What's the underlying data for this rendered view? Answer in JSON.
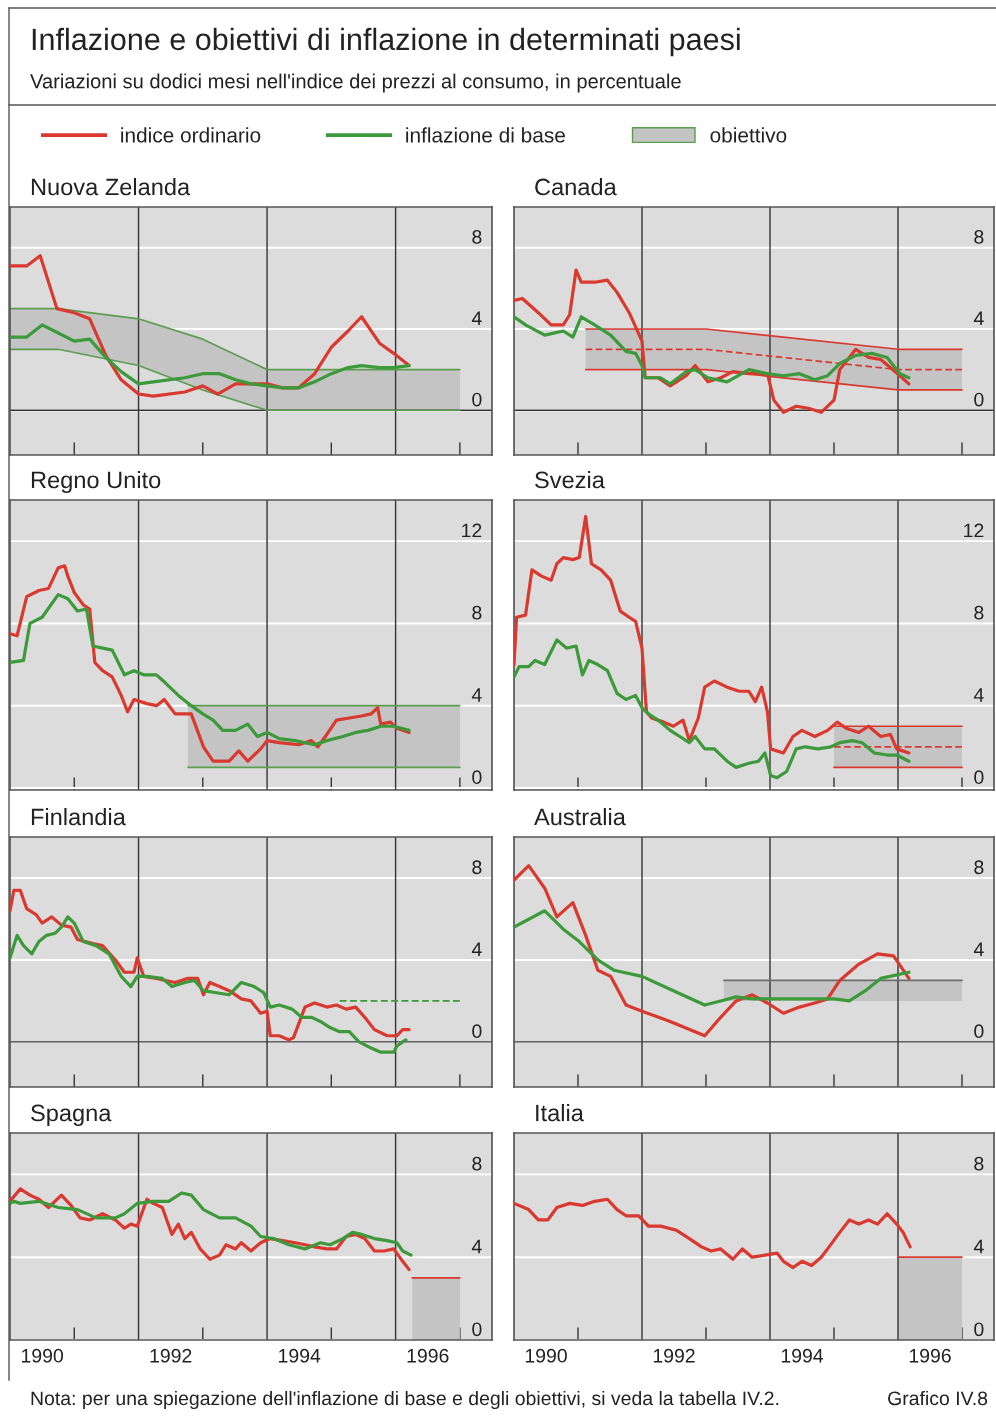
{
  "chart_data": [
    {
      "type": "other",
      "title": "Inflazione e obiettivi di inflazione in determinati paesi",
      "subtitle": "Variazioni su dodici mesi nell'indice dei prezzi al consumo, in percentuale",
      "annotations": [
        "Nota: per una spiegazione dell'inflazione di base e degli obiettivi, si veda la tabella IV.2.",
        "Grafico IV.8"
      ]
    },
    {
      "type": "line",
      "title": "Nuova Zelanda",
      "xlim": [
        1990,
        1997.5
      ],
      "ylim": [
        -2.2,
        10
      ],
      "yticks": [
        0,
        4,
        8
      ],
      "grid": "y",
      "tick_labels": "y",
      "legend": "top",
      "xticks": [
        {
          "value": 1991,
          "label": null
        },
        {
          "value": 1993,
          "label": null
        },
        {
          "value": 1995,
          "label": null
        },
        {
          "value": 1997,
          "label": null
        }
      ],
      "ref_lines": [
        {
          "axis": "x",
          "value": 1992
        },
        {
          "axis": "x",
          "value": 1994
        },
        {
          "axis": "x",
          "value": 1996
        },
        {
          "axis": "y",
          "value": 0
        }
      ],
      "series": [
        {
          "name": "indice ordinario",
          "color": "#d9392f",
          "x": [
            1990.0,
            1990.26,
            1990.47,
            1990.73,
            1991.0,
            1991.24,
            1991.49,
            1991.73,
            1992.0,
            1992.23,
            1992.72,
            1993.0,
            1993.23,
            1993.51,
            1993.75,
            1994.0,
            1994.24,
            1994.49,
            1994.74,
            1995.0,
            1995.26,
            1995.47,
            1995.75,
            1995.97,
            1996.21
          ],
          "values": [
            7.1,
            7.1,
            7.6,
            5.0,
            4.8,
            4.5,
            2.7,
            1.5,
            0.8,
            0.7,
            0.9,
            1.2,
            0.8,
            1.3,
            1.3,
            1.3,
            1.1,
            1.1,
            1.8,
            3.1,
            3.9,
            4.6,
            3.3,
            2.8,
            2.2
          ]
        },
        {
          "name": "inflazione di base",
          "color": "#3c9a3a",
          "x": [
            1990.0,
            1990.26,
            1990.5,
            1990.75,
            1991.0,
            1991.24,
            1991.49,
            1991.73,
            1992.0,
            1992.23,
            1992.72,
            1993.0,
            1993.26,
            1993.51,
            1993.75,
            1994.0,
            1994.24,
            1994.49,
            1994.74,
            1995.0,
            1995.26,
            1995.47,
            1995.75,
            1995.97,
            1996.21
          ],
          "values": [
            3.6,
            3.6,
            4.2,
            3.8,
            3.4,
            3.5,
            2.6,
            1.9,
            1.3,
            1.4,
            1.6,
            1.8,
            1.8,
            1.5,
            1.3,
            1.2,
            1.1,
            1.1,
            1.4,
            1.8,
            2.1,
            2.2,
            2.1,
            2.1,
            2.2
          ]
        },
        {
          "color": "#5a9e4e",
          "x": [
            1990,
            1990.75,
            1992,
            1993,
            1994,
            1997
          ],
          "values": [
            3,
            3,
            2.2,
            1,
            0,
            0
          ]
        },
        {
          "name": "obiettivo",
          "color": "#5a9e4e",
          "x": [
            1990,
            1990.75,
            1992,
            1993,
            1994,
            1997
          ],
          "values": [
            5,
            5,
            4.5,
            3.5,
            2,
            2
          ],
          "lower": [
            3,
            3,
            2.2,
            1,
            0,
            0
          ],
          "upper": [
            5,
            5,
            4.5,
            3.5,
            2,
            2
          ]
        }
      ]
    },
    {
      "type": "line",
      "title": "Canada",
      "xlim": [
        1990,
        1997.5
      ],
      "ylim": [
        -2.2,
        10
      ],
      "yticks": [
        0,
        4,
        8
      ],
      "grid": "y",
      "tick_labels": "y",
      "xticks": [
        {
          "value": 1991,
          "label": null
        },
        {
          "value": 1993,
          "label": null
        },
        {
          "value": 1995,
          "label": null
        },
        {
          "value": 1997,
          "label": null
        }
      ],
      "ref_lines": [
        {
          "axis": "x",
          "value": 1992
        },
        {
          "axis": "x",
          "value": 1994
        },
        {
          "axis": "x",
          "value": 1996
        },
        {
          "axis": "y",
          "value": 0
        }
      ],
      "series": [
        {
          "color": "#d9392f",
          "line_style": "dashed",
          "x": [
            1991.12,
            1993,
            1996,
            1997
          ],
          "values": [
            3,
            3,
            2,
            2
          ],
          "lower": [
            2,
            2,
            1,
            1
          ],
          "upper": [
            4,
            4,
            3,
            3
          ]
        },
        {
          "color": "#d9392f",
          "x": [
            1991.12,
            1993,
            1996,
            1997
          ],
          "values": [
            4,
            4,
            3,
            3
          ]
        },
        {
          "color": "#d9392f",
          "x": [
            1991.12,
            1993,
            1996,
            1997
          ],
          "values": [
            2,
            2,
            1,
            1
          ]
        },
        {
          "color": "#d9392f",
          "x": [
            1990.0,
            1990.13,
            1990.38,
            1990.58,
            1990.77,
            1990.87,
            1990.97,
            1991.05,
            1991.26,
            1991.46,
            1991.61,
            1991.8,
            1992.0,
            1992.05,
            1992.25,
            1992.44,
            1992.69,
            1992.83,
            1993.03,
            1993.23,
            1993.42,
            1993.67,
            1993.96,
            1994.06,
            1994.21,
            1994.41,
            1994.6,
            1994.8,
            1995.0,
            1995.09,
            1995.34,
            1995.54,
            1995.73,
            1995.88,
            1996.03,
            1996.17
          ],
          "values": [
            5.4,
            5.5,
            4.8,
            4.2,
            4.2,
            4.7,
            6.9,
            6.3,
            6.3,
            6.4,
            5.8,
            4.8,
            3.4,
            1.6,
            1.6,
            1.2,
            1.7,
            2.2,
            1.4,
            1.6,
            1.9,
            1.8,
            1.8,
            0.5,
            -0.1,
            0.2,
            0.1,
            -0.1,
            0.5,
            2.0,
            3.0,
            2.6,
            2.5,
            2.1,
            1.7,
            1.3
          ]
        },
        {
          "color": "#3c9a3a",
          "x": [
            1990.0,
            1990.18,
            1990.48,
            1990.77,
            1990.92,
            1991.05,
            1991.26,
            1991.51,
            1991.75,
            1991.9,
            1992.0,
            1992.05,
            1992.29,
            1992.44,
            1992.69,
            1992.83,
            1993.03,
            1993.33,
            1993.67,
            1993.96,
            1994.21,
            1994.46,
            1994.7,
            1994.9,
            1995.09,
            1995.34,
            1995.59,
            1995.83,
            1996.03,
            1996.17
          ],
          "values": [
            4.6,
            4.2,
            3.7,
            3.9,
            3.6,
            4.6,
            4.2,
            3.7,
            2.9,
            2.8,
            2.2,
            1.6,
            1.6,
            1.3,
            1.9,
            2.0,
            1.6,
            1.4,
            2.0,
            1.8,
            1.7,
            1.8,
            1.5,
            1.7,
            2.3,
            2.7,
            2.8,
            2.6,
            1.8,
            1.6
          ]
        }
      ]
    },
    {
      "type": "line",
      "title": "Regno Unito",
      "xlim": [
        1990,
        1997.5
      ],
      "ylim": [
        -0.1,
        14
      ],
      "yticks": [
        0,
        4,
        8,
        12
      ],
      "grid": "y",
      "tick_labels": "y",
      "xticks": [
        {
          "value": 1991,
          "label": null
        },
        {
          "value": 1993,
          "label": null
        },
        {
          "value": 1995,
          "label": null
        },
        {
          "value": 1997,
          "label": null
        }
      ],
      "ref_lines": [
        {
          "axis": "x",
          "value": 1992
        },
        {
          "axis": "x",
          "value": 1994
        },
        {
          "axis": "x",
          "value": 1996
        }
      ],
      "series": [
        {
          "color": "#5a9e4e",
          "x": [
            1992.77,
            1997
          ],
          "values": [
            4,
            4
          ],
          "lower": [
            1,
            1
          ],
          "upper": [
            4,
            4
          ]
        },
        {
          "color": "#5a9e4e",
          "x": [
            1992.77,
            1997
          ],
          "values": [
            1,
            1
          ]
        },
        {
          "color": "#d9392f",
          "x": [
            1990.0,
            1990.11,
            1990.26,
            1990.45,
            1990.6,
            1990.75,
            1990.85,
            1990.9,
            1991.0,
            1991.14,
            1991.24,
            1991.32,
            1991.44,
            1991.59,
            1991.73,
            1991.83,
            1991.93,
            1992.13,
            1992.28,
            1992.4,
            1992.57,
            1992.82,
            1993.01,
            1993.16,
            1993.41,
            1993.56,
            1993.7,
            1993.9,
            1994.0,
            1994.19,
            1994.49,
            1994.69,
            1994.79,
            1994.93,
            1995.08,
            1995.28,
            1995.47,
            1995.62,
            1995.72,
            1995.77,
            1995.92,
            1996.02,
            1996.21
          ],
          "values": [
            7.5,
            7.4,
            9.3,
            9.6,
            9.7,
            10.7,
            10.8,
            10.3,
            9.5,
            8.9,
            8.7,
            6.1,
            5.7,
            5.4,
            4.5,
            3.7,
            4.3,
            4.1,
            4.0,
            4.3,
            3.6,
            3.6,
            2.0,
            1.3,
            1.3,
            1.8,
            1.3,
            1.9,
            2.3,
            2.2,
            2.1,
            2.3,
            2.0,
            2.6,
            3.3,
            3.4,
            3.5,
            3.6,
            3.9,
            3.1,
            3.2,
            2.9,
            2.7
          ]
        },
        {
          "color": "#3c9a3a",
          "x": [
            1990.0,
            1990.21,
            1990.31,
            1990.5,
            1990.75,
            1990.9,
            1991.05,
            1991.19,
            1991.29,
            1991.44,
            1991.59,
            1991.78,
            1991.93,
            1992.08,
            1992.28,
            1992.42,
            1992.62,
            1992.82,
            1993.0,
            1993.16,
            1993.31,
            1993.51,
            1993.7,
            1993.85,
            1994.0,
            1994.19,
            1994.44,
            1994.74,
            1994.93,
            1995.18,
            1995.38,
            1995.57,
            1995.77,
            1995.97,
            1996.21
          ],
          "values": [
            6.1,
            6.2,
            8.0,
            8.3,
            9.4,
            9.2,
            8.6,
            8.7,
            6.9,
            6.8,
            6.7,
            5.5,
            5.7,
            5.5,
            5.5,
            5.1,
            4.5,
            4.0,
            3.6,
            3.3,
            2.8,
            2.8,
            3.1,
            2.5,
            2.7,
            2.4,
            2.3,
            2.1,
            2.3,
            2.5,
            2.7,
            2.8,
            3.0,
            3.0,
            2.8
          ]
        }
      ]
    },
    {
      "type": "line",
      "title": "Svezia",
      "xlim": [
        1990,
        1997.5
      ],
      "ylim": [
        -0.1,
        14
      ],
      "yticks": [
        0,
        4,
        8,
        12
      ],
      "grid": "y",
      "tick_labels": "y",
      "xticks": [
        {
          "value": 1991,
          "label": null
        },
        {
          "value": 1993,
          "label": null
        },
        {
          "value": 1995,
          "label": null
        },
        {
          "value": 1997,
          "label": null
        }
      ],
      "ref_lines": [
        {
          "axis": "x",
          "value": 1992
        },
        {
          "axis": "x",
          "value": 1994
        },
        {
          "axis": "x",
          "value": 1996
        }
      ],
      "series": [
        {
          "color": "#d9392f",
          "line_style": "dashed",
          "x": [
            1995,
            1997
          ],
          "values": [
            2,
            2
          ],
          "lower": [
            1,
            1
          ],
          "upper": [
            3,
            3
          ]
        },
        {
          "color": "#d9392f",
          "x": [
            1995,
            1997
          ],
          "values": [
            3,
            3
          ]
        },
        {
          "color": "#d9392f",
          "x": [
            1995,
            1997
          ],
          "values": [
            1,
            1
          ]
        },
        {
          "color": "#d9392f",
          "x": [
            1990.0,
            1990.04,
            1990.18,
            1990.28,
            1990.43,
            1990.58,
            1990.67,
            1990.77,
            1990.92,
            1991.02,
            1991.12,
            1991.21,
            1991.36,
            1991.51,
            1991.66,
            1991.8,
            1991.9,
            1992.0,
            1992.07,
            1992.15,
            1992.34,
            1992.49,
            1992.64,
            1992.74,
            1992.88,
            1992.98,
            1993.13,
            1993.33,
            1993.52,
            1993.67,
            1993.77,
            1993.87,
            1993.96,
            1994.01,
            1994.21,
            1994.36,
            1994.5,
            1994.7,
            1994.9,
            1995.05,
            1995.19,
            1995.39,
            1995.54,
            1995.73,
            1995.88,
            1995.98,
            1996.17
          ],
          "values": [
            6.0,
            8.3,
            8.4,
            10.6,
            10.3,
            10.1,
            10.9,
            11.2,
            11.1,
            11.2,
            13.2,
            10.9,
            10.6,
            10.1,
            8.6,
            8.3,
            8.1,
            6.8,
            3.7,
            3.4,
            3.2,
            3.0,
            3.3,
            2.3,
            3.4,
            4.9,
            5.2,
            4.9,
            4.7,
            4.7,
            4.2,
            4.9,
            3.7,
            1.9,
            1.7,
            2.5,
            2.8,
            2.5,
            2.8,
            3.2,
            2.9,
            2.7,
            3.0,
            2.5,
            2.6,
            1.9,
            1.7
          ]
        },
        {
          "color": "#3c9a3a",
          "x": [
            1990.0,
            1990.08,
            1990.23,
            1990.33,
            1990.48,
            1990.67,
            1990.82,
            1990.97,
            1991.07,
            1991.17,
            1991.31,
            1991.46,
            1991.61,
            1991.75,
            1991.9,
            1992.0,
            1992.1,
            1992.25,
            1992.44,
            1992.59,
            1992.74,
            1992.83,
            1992.98,
            1993.13,
            1993.33,
            1993.47,
            1993.67,
            1993.82,
            1993.92,
            1994.01,
            1994.11,
            1994.26,
            1994.41,
            1994.55,
            1994.75,
            1994.95,
            1995.09,
            1995.29,
            1995.44,
            1995.63,
            1995.83,
            1995.98,
            1996.17
          ],
          "values": [
            5.4,
            5.9,
            5.9,
            6.2,
            6.0,
            7.2,
            6.8,
            6.9,
            5.5,
            6.2,
            6.0,
            5.7,
            4.6,
            4.3,
            4.5,
            3.9,
            3.6,
            3.3,
            2.8,
            2.5,
            2.2,
            2.5,
            1.9,
            1.9,
            1.3,
            1.0,
            1.2,
            1.3,
            1.7,
            0.6,
            0.5,
            0.8,
            1.9,
            2.0,
            1.9,
            2.0,
            2.2,
            2.3,
            2.2,
            1.7,
            1.6,
            1.6,
            1.3
          ]
        }
      ]
    },
    {
      "type": "line",
      "title": "Finlandia",
      "xlim": [
        1990,
        1997.5
      ],
      "ylim": [
        -2.2,
        10
      ],
      "yticks": [
        0,
        4,
        8
      ],
      "grid": "y",
      "tick_labels": "y",
      "xticks": [
        {
          "value": 1991,
          "label": null
        },
        {
          "value": 1993,
          "label": null
        },
        {
          "value": 1995,
          "label": null
        },
        {
          "value": 1997,
          "label": null
        }
      ],
      "ref_lines": [
        {
          "axis": "x",
          "value": 1992
        },
        {
          "axis": "x",
          "value": 1994
        },
        {
          "axis": "x",
          "value": 1996
        },
        {
          "axis": "y",
          "value": 0
        }
      ],
      "series": [
        {
          "color": "#3c9a3a",
          "line_style": "dashed",
          "x": [
            1995.13,
            1997
          ],
          "values": [
            2,
            2
          ]
        },
        {
          "color": "#d9392f",
          "x": [
            1990.0,
            1990.06,
            1990.16,
            1990.26,
            1990.41,
            1990.5,
            1990.65,
            1990.8,
            1990.95,
            1991.05,
            1991.29,
            1991.44,
            1991.64,
            1991.78,
            1991.93,
            1991.98,
            1992.08,
            1992.28,
            1992.42,
            1992.57,
            1992.77,
            1992.92,
            1993.01,
            1993.11,
            1993.26,
            1993.41,
            1993.6,
            1993.75,
            1993.9,
            1994.0,
            1994.05,
            1994.19,
            1994.34,
            1994.41,
            1994.59,
            1994.74,
            1994.93,
            1995.08,
            1995.23,
            1995.38,
            1995.52,
            1995.67,
            1995.87,
            1996.02,
            1996.11,
            1996.21
          ],
          "values": [
            6.4,
            7.4,
            7.4,
            6.5,
            6.2,
            5.8,
            6.1,
            5.7,
            5.6,
            5.0,
            4.8,
            4.7,
            4.0,
            3.4,
            3.4,
            4.1,
            3.2,
            3.1,
            3.0,
            2.9,
            3.1,
            3.1,
            2.3,
            2.9,
            2.7,
            2.5,
            2.1,
            2.0,
            1.4,
            1.5,
            0.3,
            0.3,
            0.1,
            0.2,
            1.7,
            1.9,
            1.7,
            1.8,
            1.6,
            1.7,
            1.2,
            0.6,
            0.3,
            0.3,
            0.6,
            0.6
          ]
        },
        {
          "color": "#3c9a3a",
          "x": [
            1990.0,
            1990.11,
            1990.21,
            1990.34,
            1990.45,
            1990.57,
            1990.7,
            1990.8,
            1990.9,
            1991.0,
            1991.14,
            1991.34,
            1991.54,
            1991.73,
            1991.88,
            1991.98,
            1992.13,
            1992.37,
            1992.52,
            1992.72,
            1992.87,
            1993.01,
            1993.21,
            1993.41,
            1993.6,
            1993.8,
            1993.95,
            1994.05,
            1994.19,
            1994.39,
            1994.54,
            1994.69,
            1994.83,
            1994.98,
            1995.13,
            1995.28,
            1995.43,
            1995.62,
            1995.77,
            1995.97,
            1996.02,
            1996.11,
            1996.16
          ],
          "values": [
            4.1,
            5.2,
            4.7,
            4.3,
            4.9,
            5.2,
            5.3,
            5.6,
            6.1,
            5.8,
            4.9,
            4.7,
            4.3,
            3.2,
            2.7,
            3.2,
            3.2,
            3.1,
            2.7,
            2.9,
            3.0,
            2.5,
            2.4,
            2.3,
            2.9,
            2.7,
            2.4,
            1.7,
            1.8,
            1.6,
            1.2,
            1.2,
            1.0,
            0.7,
            0.5,
            0.5,
            0.0,
            -0.3,
            -0.5,
            -0.5,
            -0.2,
            0.0,
            0.1
          ]
        }
      ]
    },
    {
      "type": "line",
      "title": "Australia",
      "xlim": [
        1990,
        1997.5
      ],
      "ylim": [
        -2.2,
        10
      ],
      "yticks": [
        0,
        4,
        8
      ],
      "grid": "y",
      "tick_labels": "y",
      "xticks": [
        {
          "value": 1991,
          "label": null
        },
        {
          "value": 1993,
          "label": null
        },
        {
          "value": 1995,
          "label": null
        },
        {
          "value": 1997,
          "label": null
        }
      ],
      "ref_lines": [
        {
          "axis": "x",
          "value": 1992
        },
        {
          "axis": "x",
          "value": 1994
        },
        {
          "axis": "x",
          "value": 1996
        },
        {
          "axis": "y",
          "value": 0
        }
      ],
      "series": [
        {
          "color": "#6e6e6e",
          "x": [
            1993.28,
            1997
          ],
          "values": [
            3,
            3
          ],
          "lower": [
            2,
            2
          ],
          "upper": [
            3,
            3
          ]
        },
        {
          "color": "#d9392f",
          "x": [
            1990.0,
            1990.23,
            1990.48,
            1990.67,
            1990.92,
            1991.12,
            1991.31,
            1991.51,
            1991.75,
            1992.0,
            1992.44,
            1992.98,
            1993.23,
            1993.47,
            1993.72,
            1993.96,
            1994.21,
            1994.46,
            1994.7,
            1994.9,
            1995.09,
            1995.39,
            1995.68,
            1995.93,
            1996.17
          ],
          "values": [
            7.9,
            8.6,
            7.5,
            6.1,
            6.8,
            5.2,
            3.5,
            3.2,
            1.8,
            1.5,
            1.0,
            0.3,
            1.2,
            2.0,
            2.3,
            1.9,
            1.4,
            1.7,
            1.9,
            2.1,
            3.0,
            3.8,
            4.3,
            4.2,
            3.1
          ]
        },
        {
          "color": "#3c9a3a",
          "x": [
            1990.0,
            1990.48,
            1990.77,
            1991.02,
            1991.31,
            1991.56,
            1992.0,
            1992.49,
            1992.98,
            1993.23,
            1993.47,
            1993.72,
            1994.21,
            1994.7,
            1995.0,
            1995.24,
            1995.49,
            1995.73,
            1996.17
          ],
          "values": [
            5.6,
            6.4,
            5.5,
            4.9,
            4.0,
            3.5,
            3.2,
            2.5,
            1.8,
            2.0,
            2.2,
            2.1,
            2.1,
            2.1,
            2.1,
            2.0,
            2.5,
            3.1,
            3.4
          ]
        }
      ]
    },
    {
      "type": "line",
      "title": "Spagna",
      "xlim": [
        1990,
        1997.5
      ],
      "ylim": [
        0,
        10
      ],
      "yticks": [
        0,
        4,
        8
      ],
      "grid": "y",
      "xticks": [
        {
          "value": 1990.5,
          "label": "1990"
        },
        {
          "value": 1991,
          "label": null
        },
        {
          "value": 1992.5,
          "label": "1992"
        },
        {
          "value": 1993,
          "label": null
        },
        {
          "value": 1994.5,
          "label": "1994"
        },
        {
          "value": 1995,
          "label": null
        },
        {
          "value": 1996.5,
          "label": "1996"
        },
        {
          "value": 1997,
          "label": null
        }
      ],
      "ref_lines": [
        {
          "axis": "x",
          "value": 1992
        },
        {
          "axis": "x",
          "value": 1994
        },
        {
          "axis": "x",
          "value": 1996
        }
      ],
      "series": [
        {
          "color": "#d9392f",
          "x": [
            1996.26,
            1997
          ],
          "values": [
            3,
            3
          ],
          "lower": [
            0,
            0
          ],
          "upper": [
            3,
            3
          ]
        },
        {
          "color": "#d9392f",
          "x": [
            1990.0,
            1990.16,
            1990.31,
            1990.45,
            1990.6,
            1990.8,
            1990.95,
            1991.09,
            1991.24,
            1991.44,
            1991.64,
            1991.78,
            1991.88,
            1991.98,
            1992.13,
            1992.23,
            1992.37,
            1992.52,
            1992.62,
            1992.72,
            1992.82,
            1992.96,
            1993.11,
            1993.26,
            1993.36,
            1993.51,
            1993.6,
            1993.75,
            1993.9,
            1994.05,
            1994.24,
            1994.44,
            1994.59,
            1994.74,
            1994.93,
            1995.08,
            1995.23,
            1995.38,
            1995.52,
            1995.67,
            1995.82,
            1995.97,
            1996.11,
            1996.21
          ],
          "values": [
            6.7,
            7.3,
            7.0,
            6.8,
            6.4,
            7.0,
            6.5,
            5.9,
            5.8,
            6.1,
            5.8,
            5.4,
            5.6,
            5.5,
            6.8,
            6.6,
            6.4,
            5.1,
            5.6,
            4.9,
            5.2,
            4.4,
            3.9,
            4.1,
            4.6,
            4.4,
            4.7,
            4.3,
            4.7,
            4.9,
            4.8,
            4.7,
            4.6,
            4.5,
            4.4,
            4.4,
            5.0,
            5.1,
            4.9,
            4.3,
            4.3,
            4.4,
            3.8,
            3.4
          ]
        },
        {
          "color": "#3c9a3a",
          "x": [
            1990.0,
            1990.06,
            1990.16,
            1990.45,
            1990.75,
            1991.05,
            1991.34,
            1991.64,
            1991.78,
            1991.98,
            1992.23,
            1992.47,
            1992.67,
            1992.82,
            1993.01,
            1993.26,
            1993.51,
            1993.75,
            1993.9,
            1994.1,
            1994.34,
            1994.59,
            1994.83,
            1994.98,
            1995.18,
            1995.33,
            1995.47,
            1995.67,
            1995.87,
            1996.02,
            1996.11,
            1996.24
          ],
          "values": [
            6.6,
            6.7,
            6.6,
            6.7,
            6.4,
            6.3,
            5.9,
            5.9,
            6.1,
            6.6,
            6.7,
            6.7,
            7.1,
            7.0,
            6.3,
            5.9,
            5.9,
            5.5,
            5.0,
            4.9,
            4.6,
            4.4,
            4.7,
            4.6,
            4.9,
            5.2,
            5.1,
            4.9,
            4.8,
            4.7,
            4.3,
            4.1
          ]
        }
      ]
    },
    {
      "type": "line",
      "title": "Italia",
      "xlim": [
        1990,
        1997.5
      ],
      "ylim": [
        0,
        10
      ],
      "yticks": [
        0,
        4,
        8
      ],
      "grid": "y",
      "xticks": [
        {
          "value": 1990.5,
          "label": "1990"
        },
        {
          "value": 1991,
          "label": null
        },
        {
          "value": 1992.5,
          "label": "1992"
        },
        {
          "value": 1993,
          "label": null
        },
        {
          "value": 1994.5,
          "label": "1994"
        },
        {
          "value": 1995,
          "label": null
        },
        {
          "value": 1996.5,
          "label": "1996"
        },
        {
          "value": 1997,
          "label": null
        }
      ],
      "ref_lines": [
        {
          "axis": "x",
          "value": 1992
        },
        {
          "axis": "x",
          "value": 1994
        },
        {
          "axis": "x",
          "value": 1996
        }
      ],
      "series": [
        {
          "color": "#d9392f",
          "x": [
            1996.0,
            1997
          ],
          "values": [
            4,
            4
          ],
          "lower": [
            0,
            0
          ],
          "upper": [
            4,
            4
          ]
        },
        {
          "color": "#d9392f",
          "x": [
            1990.0,
            1990.23,
            1990.38,
            1990.53,
            1990.67,
            1990.87,
            1991.07,
            1991.26,
            1991.46,
            1991.61,
            1991.75,
            1991.95,
            1992.1,
            1992.29,
            1992.54,
            1992.74,
            1992.93,
            1993.08,
            1993.23,
            1993.42,
            1993.57,
            1993.72,
            1993.92,
            1994.11,
            1994.21,
            1994.36,
            1994.5,
            1994.65,
            1994.8,
            1994.9,
            1995.09,
            1995.24,
            1995.39,
            1995.54,
            1995.68,
            1995.83,
            1995.98,
            1996.08,
            1996.19
          ],
          "values": [
            6.6,
            6.3,
            5.8,
            5.8,
            6.4,
            6.6,
            6.5,
            6.7,
            6.8,
            6.3,
            6.0,
            6.0,
            5.5,
            5.5,
            5.3,
            4.9,
            4.5,
            4.3,
            4.4,
            3.9,
            4.4,
            4.0,
            4.1,
            4.2,
            3.8,
            3.5,
            3.8,
            3.6,
            4.0,
            4.4,
            5.2,
            5.8,
            5.6,
            5.8,
            5.6,
            6.1,
            5.6,
            5.2,
            4.5
          ]
        }
      ]
    }
  ]
}
